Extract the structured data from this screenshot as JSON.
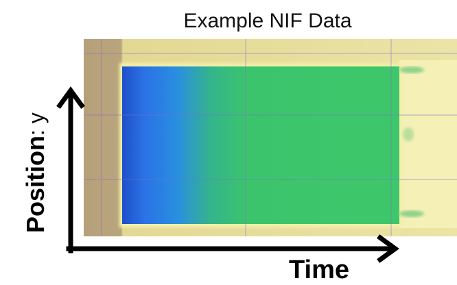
{
  "title": "Example NIF Data",
  "y_axis": {
    "label": "Position",
    "variable": ": y"
  },
  "x_axis": {
    "label": "Time"
  }
}
